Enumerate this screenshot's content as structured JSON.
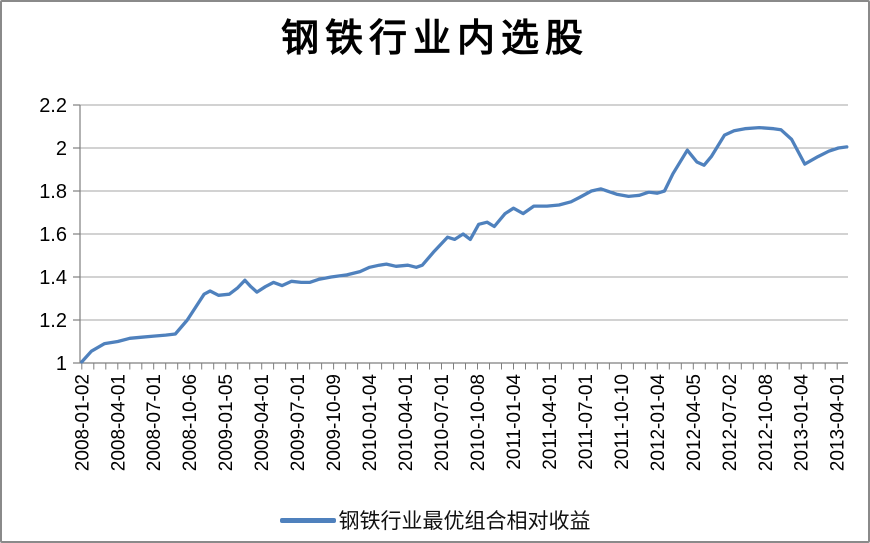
{
  "chart_data": {
    "type": "line",
    "title": "钢铁行业内选股",
    "xlabel": "",
    "ylabel": "",
    "ylim": [
      1,
      2.2
    ],
    "y_ticks": [
      1,
      1.2,
      1.4,
      1.6,
      1.8,
      2,
      2.2
    ],
    "grid": "horizontal",
    "grid_color": "#A6A6A6",
    "axis_color": "#7F7F7F",
    "text_color": "#000000",
    "legend_position": "bottom",
    "x_domain_months": [
      -0.15,
      63.9
    ],
    "x_minor_ticks": {
      "start": 0,
      "end": 63,
      "step": 1
    },
    "x_tick_months": [
      0,
      3,
      6,
      9,
      12,
      15,
      18,
      21,
      24,
      27,
      30,
      33,
      36,
      39,
      42,
      45,
      48,
      51,
      54,
      57,
      60,
      63
    ],
    "x_tick_labels": [
      "2008-01-02",
      "2008-04-01",
      "2008-07-01",
      "2008-10-06",
      "2009-01-05",
      "2009-04-01",
      "2009-07-01",
      "2009-10-09",
      "2010-01-04",
      "2010-04-01",
      "2010-07-01",
      "2010-10-08",
      "2011-01-04",
      "2011-04-01",
      "2011-07-01",
      "2011-10-10",
      "2012-01-04",
      "2012-04-05",
      "2012-07-02",
      "2012-10-08",
      "2013-01-04",
      "2013-04-01"
    ],
    "series": [
      {
        "name": "钢铁行业最优组合相对收益",
        "color": "#4F81BD",
        "points": [
          [
            0,
            1.005
          ],
          [
            0.8,
            1.055
          ],
          [
            1.9,
            1.09
          ],
          [
            3,
            1.1
          ],
          [
            4,
            1.115
          ],
          [
            5,
            1.12
          ],
          [
            6,
            1.125
          ],
          [
            7,
            1.13
          ],
          [
            7.8,
            1.135
          ],
          [
            8.8,
            1.2
          ],
          [
            9.5,
            1.26
          ],
          [
            10.2,
            1.32
          ],
          [
            10.7,
            1.335
          ],
          [
            11.4,
            1.315
          ],
          [
            12.3,
            1.32
          ],
          [
            13,
            1.35
          ],
          [
            13.6,
            1.385
          ],
          [
            14.1,
            1.355
          ],
          [
            14.6,
            1.33
          ],
          [
            15.3,
            1.355
          ],
          [
            16,
            1.375
          ],
          [
            16.7,
            1.36
          ],
          [
            17.5,
            1.38
          ],
          [
            18.3,
            1.375
          ],
          [
            19,
            1.375
          ],
          [
            19.8,
            1.39
          ],
          [
            20.8,
            1.4
          ],
          [
            22.1,
            1.41
          ],
          [
            23.2,
            1.425
          ],
          [
            24,
            1.445
          ],
          [
            24.8,
            1.455
          ],
          [
            25.4,
            1.46
          ],
          [
            26.2,
            1.45
          ],
          [
            27.2,
            1.455
          ],
          [
            27.9,
            1.445
          ],
          [
            28.4,
            1.455
          ],
          [
            29.4,
            1.52
          ],
          [
            30.5,
            1.585
          ],
          [
            31.1,
            1.575
          ],
          [
            31.8,
            1.6
          ],
          [
            32.4,
            1.575
          ],
          [
            33.1,
            1.645
          ],
          [
            33.8,
            1.655
          ],
          [
            34.4,
            1.635
          ],
          [
            35.3,
            1.695
          ],
          [
            36,
            1.72
          ],
          [
            36.8,
            1.695
          ],
          [
            37.7,
            1.73
          ],
          [
            38.8,
            1.73
          ],
          [
            39.8,
            1.735
          ],
          [
            40.8,
            1.75
          ],
          [
            41.5,
            1.77
          ],
          [
            42.5,
            1.8
          ],
          [
            43.3,
            1.81
          ],
          [
            44.6,
            1.785
          ],
          [
            45.6,
            1.775
          ],
          [
            46.5,
            1.78
          ],
          [
            47.3,
            1.795
          ],
          [
            48,
            1.79
          ],
          [
            48.6,
            1.8
          ],
          [
            49.3,
            1.88
          ],
          [
            50.5,
            1.99
          ],
          [
            51.3,
            1.935
          ],
          [
            51.9,
            1.92
          ],
          [
            52.5,
            1.96
          ],
          [
            53.6,
            2.06
          ],
          [
            54.4,
            2.08
          ],
          [
            55.3,
            2.09
          ],
          [
            56.5,
            2.095
          ],
          [
            57.7,
            2.09
          ],
          [
            58.3,
            2.085
          ],
          [
            59.2,
            2.04
          ],
          [
            60.3,
            1.925
          ],
          [
            61.4,
            1.96
          ],
          [
            62.3,
            1.985
          ],
          [
            63.1,
            2.0
          ],
          [
            63.8,
            2.005
          ]
        ]
      }
    ]
  },
  "frame": {
    "background": "#FFFFFF",
    "border_color": "#8A8A8A"
  }
}
